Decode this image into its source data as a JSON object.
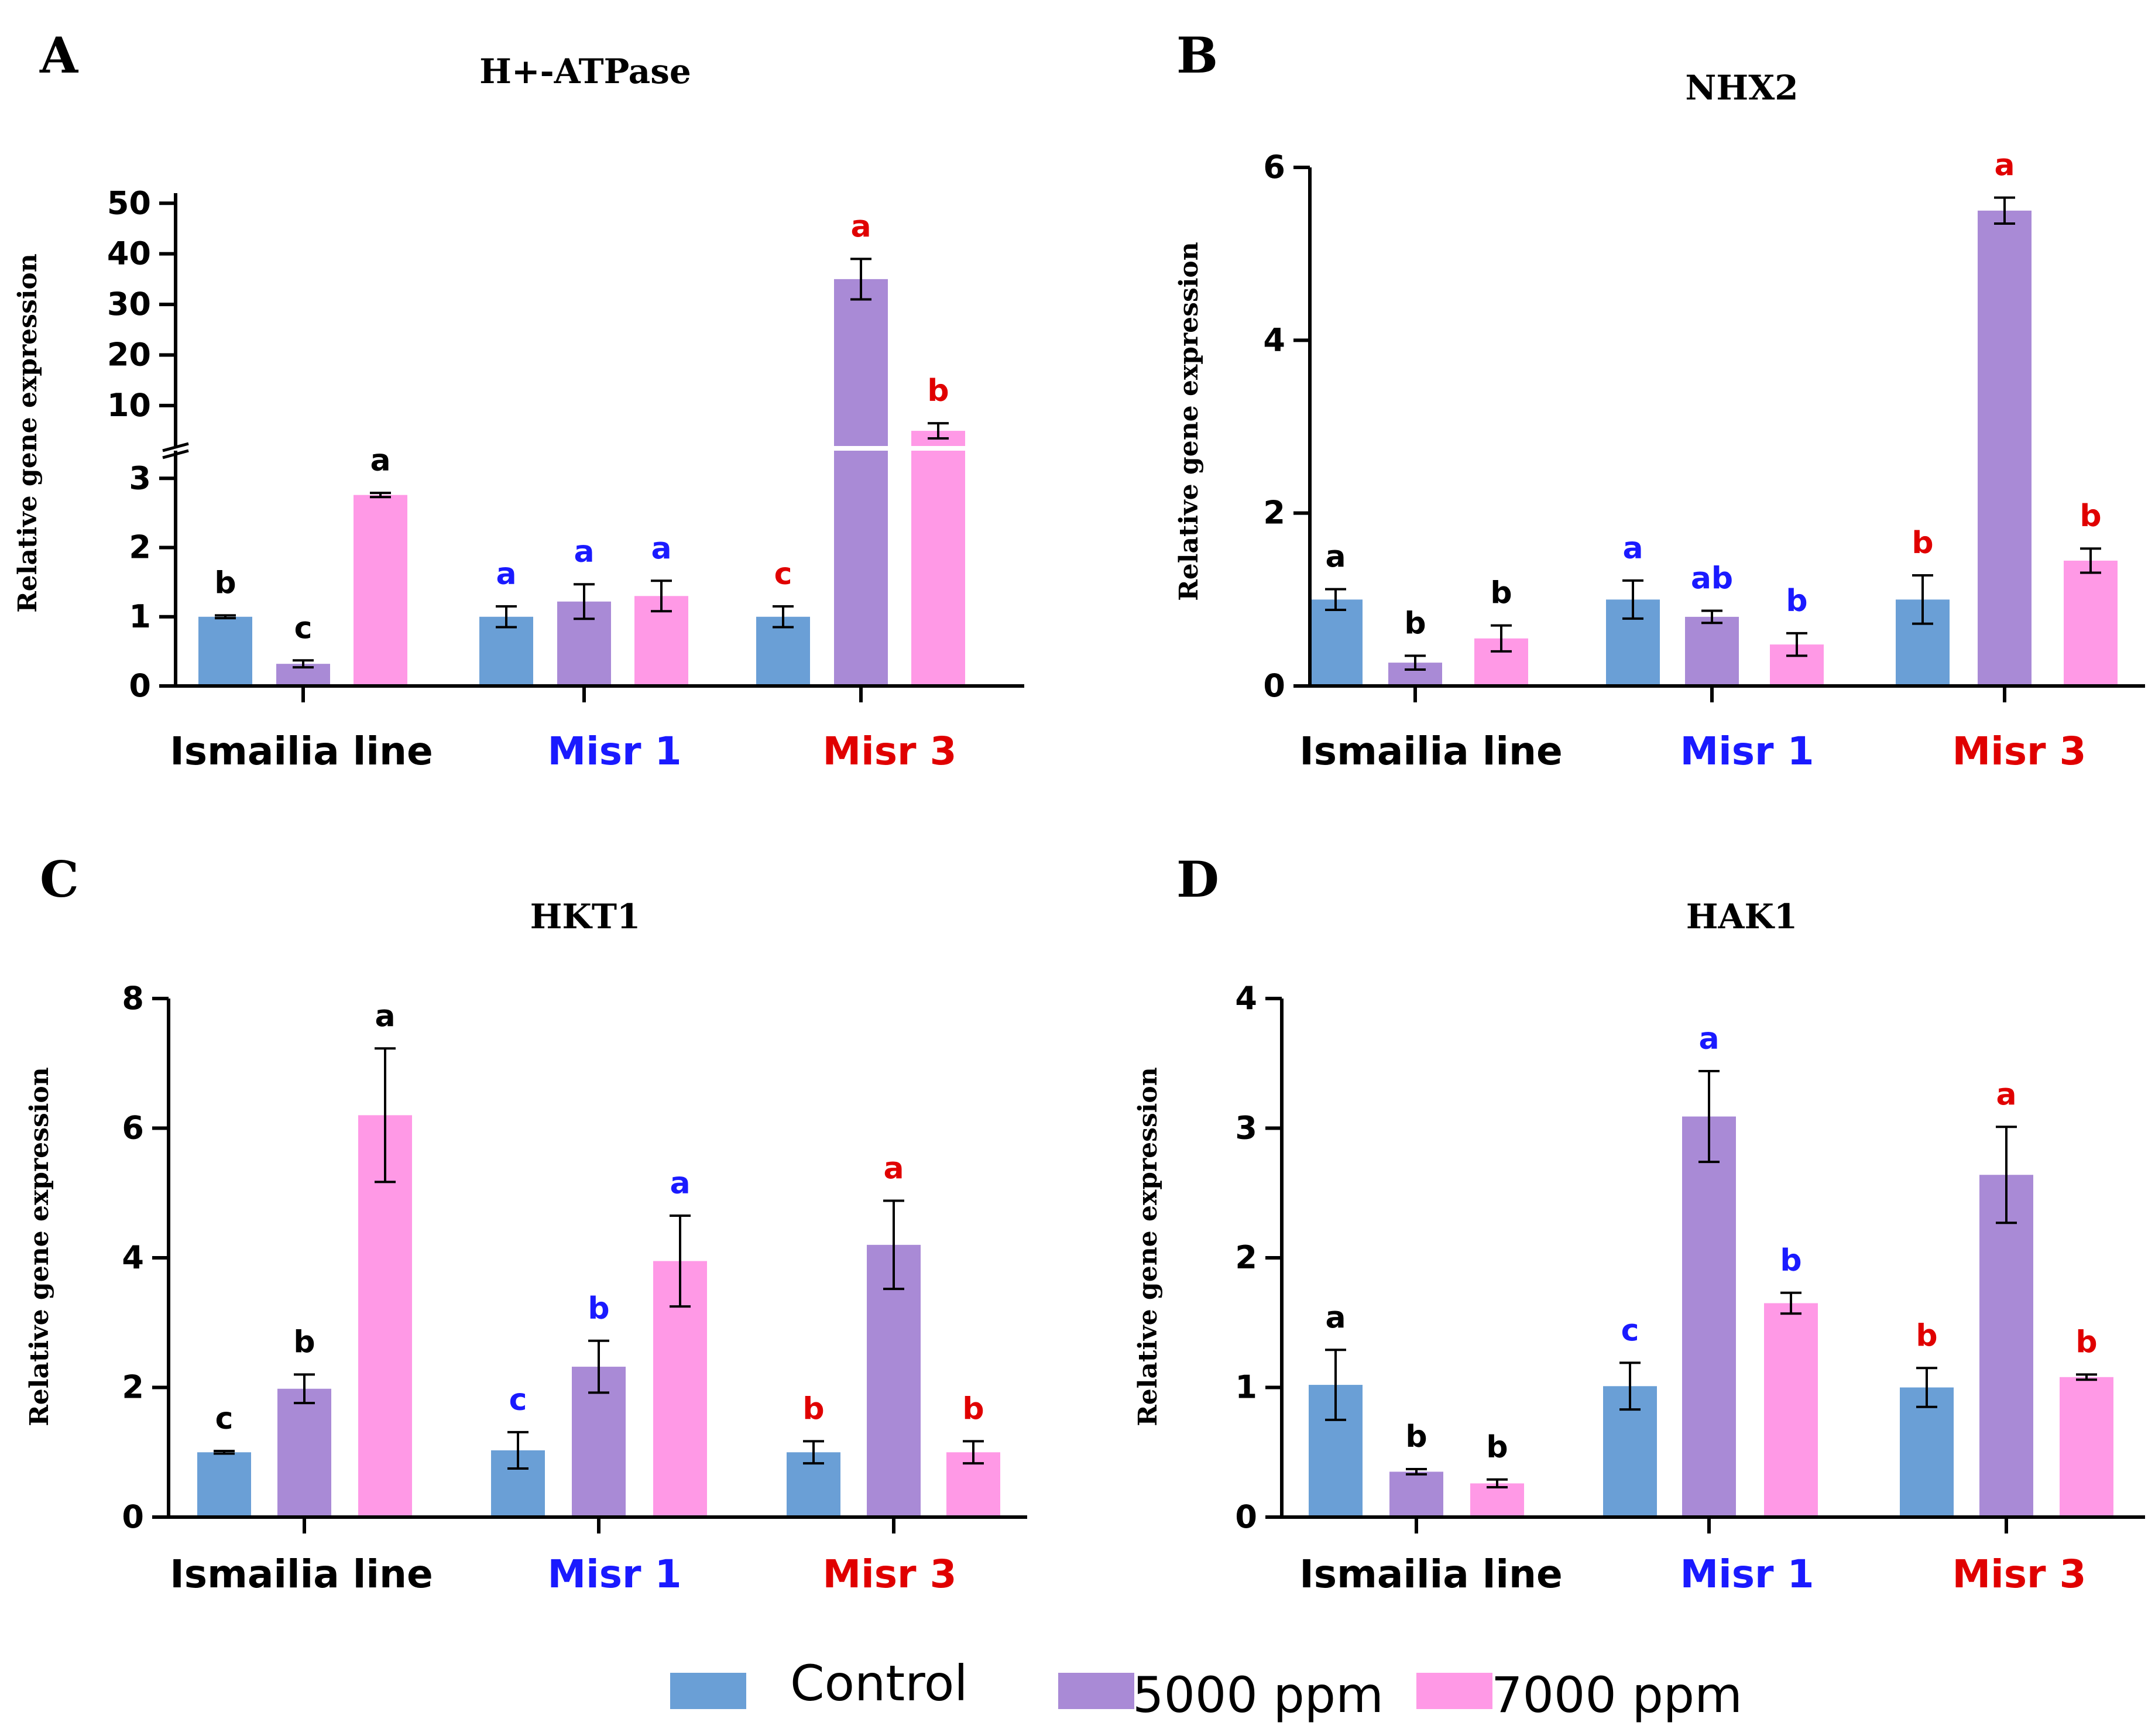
{
  "legend": {
    "entries": [
      {
        "label": "Control",
        "color": "#6a9fd6"
      },
      {
        "label": "5000 ppm",
        "color": "#a98ad6"
      },
      {
        "label": "7000 ppm",
        "color": "#ff99e6"
      }
    ]
  },
  "chart_data": [
    {
      "panel": "A",
      "type": "bar",
      "title": "H+-ATPase",
      "ylabel": "Relative gene expression",
      "axis_break": true,
      "lower_ticks": [
        "0",
        "1",
        "2",
        "3"
      ],
      "upper_ticks": [
        "10",
        "20",
        "30",
        "40",
        "50"
      ],
      "categories": [
        {
          "label": "Ismailia line",
          "color": "#000000"
        },
        {
          "label": "Misr 1",
          "color": "#1a1aff"
        },
        {
          "label": "Misr 3",
          "color": "#e00000"
        }
      ],
      "series": [
        {
          "name": "Control",
          "values": [
            1.0,
            1.0,
            1.0
          ],
          "errors": [
            0.02,
            0.15,
            0.15
          ],
          "letters": [
            "b",
            "a",
            "c"
          ]
        },
        {
          "name": "5000 ppm",
          "values": [
            0.32,
            1.22,
            35.0
          ],
          "errors": [
            0.05,
            0.25,
            4.0
          ],
          "letters": [
            "c",
            "a",
            "a"
          ]
        },
        {
          "name": "7000 ppm",
          "values": [
            2.76,
            1.3,
            5.0
          ],
          "errors": [
            0.03,
            0.22,
            1.5
          ],
          "letters": [
            "a",
            "a",
            "b"
          ]
        }
      ]
    },
    {
      "panel": "B",
      "type": "bar",
      "title": "NHX2",
      "ylabel": "Relative gene expression",
      "ylim": [
        0,
        6
      ],
      "ticks": [
        "0",
        "2",
        "4",
        "6"
      ],
      "categories": [
        {
          "label": "Ismailia line",
          "color": "#000000"
        },
        {
          "label": "Misr 1",
          "color": "#1a1aff"
        },
        {
          "label": "Misr 3",
          "color": "#e00000"
        }
      ],
      "series": [
        {
          "name": "Control",
          "values": [
            1.0,
            1.0,
            1.0
          ],
          "errors": [
            0.12,
            0.22,
            0.28
          ],
          "letters": [
            "a",
            "a",
            "b"
          ]
        },
        {
          "name": "5000 ppm",
          "values": [
            0.27,
            0.8,
            5.5
          ],
          "errors": [
            0.08,
            0.07,
            0.15
          ],
          "letters": [
            "b",
            "ab",
            "a"
          ]
        },
        {
          "name": "7000 ppm",
          "values": [
            0.55,
            0.48,
            1.45
          ],
          "errors": [
            0.15,
            0.13,
            0.14
          ],
          "letters": [
            "b",
            "b",
            "b"
          ]
        }
      ]
    },
    {
      "panel": "C",
      "type": "bar",
      "title": "HKT1",
      "ylabel": "Relative gene expression",
      "ylim": [
        0,
        8
      ],
      "ticks": [
        "0",
        "2",
        "4",
        "6",
        "8"
      ],
      "categories": [
        {
          "label": "Ismailia line",
          "color": "#000000"
        },
        {
          "label": "Misr 1",
          "color": "#1a1aff"
        },
        {
          "label": "Misr 3",
          "color": "#e00000"
        }
      ],
      "series": [
        {
          "name": "Control",
          "values": [
            1.0,
            1.03,
            1.0
          ],
          "errors": [
            0.02,
            0.28,
            0.17
          ],
          "letters": [
            "c",
            "c",
            "b"
          ]
        },
        {
          "name": "5000 ppm",
          "values": [
            1.98,
            2.32,
            4.2
          ],
          "errors": [
            0.22,
            0.4,
            0.68
          ],
          "letters": [
            "b",
            "b",
            "a"
          ]
        },
        {
          "name": "7000 ppm",
          "values": [
            6.2,
            3.95,
            1.0
          ],
          "errors": [
            1.03,
            0.7,
            0.17
          ],
          "letters": [
            "a",
            "a",
            "b"
          ]
        }
      ]
    },
    {
      "panel": "D",
      "type": "bar",
      "title": "HAK1",
      "ylabel": "Relative gene expression",
      "ylim": [
        0,
        4
      ],
      "ticks": [
        "0",
        "1",
        "2",
        "3",
        "4"
      ],
      "categories": [
        {
          "label": "Ismailia line",
          "color": "#000000"
        },
        {
          "label": "Misr 1",
          "color": "#1a1aff"
        },
        {
          "label": "Misr 3",
          "color": "#e00000"
        }
      ],
      "series": [
        {
          "name": "Control",
          "values": [
            1.02,
            1.01,
            1.0
          ],
          "errors": [
            0.27,
            0.18,
            0.15
          ],
          "letters": [
            "a",
            "c",
            "b"
          ]
        },
        {
          "name": "5000 ppm",
          "values": [
            0.35,
            3.09,
            2.64
          ],
          "errors": [
            0.02,
            0.35,
            0.37
          ],
          "letters": [
            "b",
            "a",
            "a"
          ]
        },
        {
          "name": "7000 ppm",
          "values": [
            0.26,
            1.65,
            1.08
          ],
          "errors": [
            0.03,
            0.08,
            0.02
          ],
          "letters": [
            "b",
            "b",
            "b"
          ]
        }
      ]
    }
  ]
}
